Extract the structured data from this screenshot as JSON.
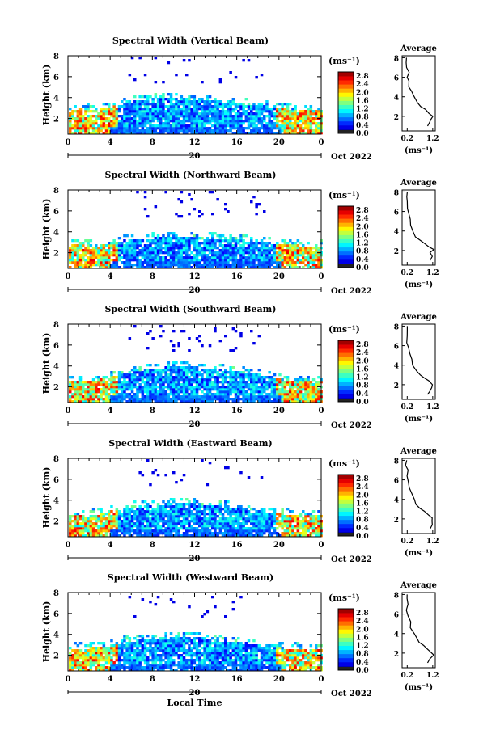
{
  "chart_data": [
    {
      "type": "heatmap",
      "title": "Spectral Width (Vertical Beam)",
      "xlabel": "",
      "ylabel": "Height (km)",
      "x_ticks": [
        "0",
        "4",
        "8",
        "12",
        "16",
        "20",
        "0"
      ],
      "y_ticks": [
        "2",
        "4",
        "6",
        "8"
      ],
      "xlim": [
        0,
        24
      ],
      "ylim": [
        0.5,
        8
      ],
      "date_day": "20",
      "date_month": "Oct 2022",
      "colorbar": {
        "unit": "(ms⁻¹)",
        "ticks": [
          "0.0",
          "0.4",
          "0.8",
          "1.2",
          "1.6",
          "2.0",
          "2.4",
          "2.8"
        ],
        "range": [
          0,
          3.0
        ]
      },
      "echo_top_km": [
        3.0,
        3.1,
        3.0,
        3.2,
        3.4,
        3.7,
        3.8,
        3.9,
        4.0,
        4.0,
        4.0,
        3.9,
        3.9,
        3.8,
        3.7,
        3.6,
        3.5,
        3.4,
        3.3,
        3.2,
        3.1,
        3.0,
        3.0,
        3.0
      ],
      "average": {
        "title": "Average",
        "xlabel": "(ms⁻¹)",
        "x_ticks": [
          "0.2",
          "1.2"
        ],
        "y_ticks": [
          "2",
          "4",
          "6",
          "8"
        ],
        "xlim": [
          0,
          1.3
        ],
        "profile": [
          [
            1.0,
            1.0
          ],
          [
            1.1,
            1.4
          ],
          [
            1.15,
            1.7
          ],
          [
            1.2,
            2.0
          ],
          [
            1.05,
            2.3
          ],
          [
            0.9,
            2.7
          ],
          [
            0.75,
            3.0
          ],
          [
            0.6,
            3.4
          ],
          [
            0.5,
            4.0
          ],
          [
            0.35,
            4.6
          ],
          [
            0.3,
            5.0
          ],
          [
            0.25,
            5.6
          ],
          [
            0.2,
            6.0
          ],
          [
            0.25,
            6.5
          ],
          [
            0.2,
            7.0
          ],
          [
            0.15,
            7.5
          ],
          [
            0.18,
            8.0
          ]
        ]
      }
    },
    {
      "type": "heatmap",
      "title": "Spectral Width (Northward Beam)",
      "xlabel": "",
      "ylabel": "Height (km)",
      "x_ticks": [
        "0",
        "4",
        "8",
        "12",
        "16",
        "20",
        "0"
      ],
      "y_ticks": [
        "2",
        "4",
        "6",
        "8"
      ],
      "xlim": [
        0,
        24
      ],
      "ylim": [
        0.5,
        8
      ],
      "date_day": "20",
      "date_month": "Oct 2022",
      "colorbar": {
        "unit": "(ms⁻¹)",
        "ticks": [
          "0.0",
          "0.4",
          "0.8",
          "1.2",
          "1.6",
          "2.0",
          "2.4",
          "2.8"
        ],
        "range": [
          0,
          3.0
        ]
      },
      "echo_top_km": [
        3.0,
        2.9,
        2.8,
        2.9,
        3.1,
        3.3,
        3.4,
        3.5,
        3.6,
        3.6,
        3.6,
        3.6,
        3.5,
        3.5,
        3.4,
        3.4,
        3.3,
        3.2,
        3.1,
        3.0,
        2.9,
        2.9,
        2.8,
        2.8
      ],
      "average": {
        "title": "Average",
        "xlabel": "(ms⁻¹)",
        "x_ticks": [
          "0.2",
          "1.2"
        ],
        "y_ticks": [
          "2",
          "4",
          "6",
          "8"
        ],
        "xlim": [
          0,
          1.3
        ],
        "profile": [
          [
            1.1,
            1.0
          ],
          [
            1.2,
            1.4
          ],
          [
            1.1,
            1.8
          ],
          [
            1.25,
            2.1
          ],
          [
            1.0,
            2.4
          ],
          [
            0.85,
            2.8
          ],
          [
            0.7,
            3.0
          ],
          [
            0.55,
            3.4
          ],
          [
            0.45,
            4.0
          ],
          [
            0.35,
            4.6
          ],
          [
            0.3,
            5.2
          ],
          [
            0.25,
            5.8
          ],
          [
            0.22,
            6.3
          ],
          [
            0.2,
            7.0
          ],
          [
            0.18,
            7.5
          ],
          [
            0.2,
            8.0
          ]
        ]
      }
    },
    {
      "type": "heatmap",
      "title": "Spectral Width (Southward Beam)",
      "xlabel": "",
      "ylabel": "Height (km)",
      "x_ticks": [
        "0",
        "4",
        "8",
        "12",
        "16",
        "20",
        "0"
      ],
      "y_ticks": [
        "2",
        "4",
        "6",
        "8"
      ],
      "xlim": [
        0,
        24
      ],
      "ylim": [
        0.5,
        8
      ],
      "date_day": "20",
      "date_month": "Oct 2022",
      "colorbar": {
        "unit": "(ms⁻¹)",
        "ticks": [
          "0.0",
          "0.4",
          "0.8",
          "1.2",
          "1.6",
          "2.0",
          "2.4",
          "2.8"
        ],
        "range": [
          0,
          3.0
        ]
      },
      "echo_top_km": [
        2.6,
        2.6,
        2.7,
        2.9,
        3.1,
        3.4,
        3.6,
        3.8,
        3.9,
        4.0,
        4.0,
        4.0,
        3.9,
        3.8,
        3.8,
        3.7,
        3.5,
        3.3,
        3.1,
        2.9,
        2.8,
        2.7,
        2.6,
        2.6
      ],
      "average": {
        "title": "Average",
        "xlabel": "(ms⁻¹)",
        "x_ticks": [
          "0.2",
          "1.2"
        ],
        "y_ticks": [
          "2",
          "4",
          "6",
          "8"
        ],
        "xlim": [
          0,
          1.3
        ],
        "profile": [
          [
            1.0,
            1.0
          ],
          [
            1.1,
            1.3
          ],
          [
            1.15,
            1.7
          ],
          [
            1.2,
            2.0
          ],
          [
            1.05,
            2.4
          ],
          [
            0.9,
            2.7
          ],
          [
            0.7,
            3.0
          ],
          [
            0.55,
            3.4
          ],
          [
            0.45,
            4.0
          ],
          [
            0.35,
            4.6
          ],
          [
            0.3,
            5.2
          ],
          [
            0.25,
            5.8
          ],
          [
            0.2,
            6.3
          ],
          [
            0.22,
            7.0
          ],
          [
            0.17,
            7.6
          ],
          [
            0.2,
            8.0
          ]
        ]
      }
    },
    {
      "type": "heatmap",
      "title": "Spectral Width (Eastward Beam)",
      "xlabel": "",
      "ylabel": "Height (km)",
      "x_ticks": [
        "0",
        "4",
        "8",
        "12",
        "16",
        "20",
        "0"
      ],
      "y_ticks": [
        "2",
        "4",
        "6",
        "8"
      ],
      "xlim": [
        0,
        24
      ],
      "ylim": [
        0.5,
        8
      ],
      "date_day": "20",
      "date_month": "Oct 2022",
      "colorbar": {
        "unit": "(ms⁻¹)",
        "ticks": [
          "0.0",
          "0.4",
          "0.8",
          "1.2",
          "1.6",
          "2.0",
          "2.4",
          "2.8"
        ],
        "range": [
          0,
          3.0
        ]
      },
      "echo_top_km": [
        2.7,
        2.7,
        2.8,
        2.9,
        3.1,
        3.3,
        3.5,
        3.6,
        3.7,
        3.8,
        3.8,
        3.8,
        3.7,
        3.6,
        3.6,
        3.5,
        3.4,
        3.2,
        3.0,
        2.9,
        2.8,
        2.7,
        2.7,
        2.7
      ],
      "average": {
        "title": "Average",
        "xlabel": "(ms⁻¹)",
        "x_ticks": [
          "0.2",
          "1.2"
        ],
        "y_ticks": [
          "2",
          "4",
          "6",
          "8"
        ],
        "xlim": [
          0,
          1.3
        ],
        "profile": [
          [
            1.1,
            1.0
          ],
          [
            1.2,
            1.4
          ],
          [
            1.15,
            1.8
          ],
          [
            1.2,
            2.1
          ],
          [
            1.0,
            2.4
          ],
          [
            0.85,
            2.8
          ],
          [
            0.7,
            3.1
          ],
          [
            0.55,
            3.5
          ],
          [
            0.45,
            4.0
          ],
          [
            0.38,
            4.6
          ],
          [
            0.3,
            5.2
          ],
          [
            0.25,
            5.8
          ],
          [
            0.22,
            6.4
          ],
          [
            0.2,
            7.0
          ],
          [
            0.15,
            7.5
          ],
          [
            0.18,
            8.0
          ]
        ]
      }
    },
    {
      "type": "heatmap",
      "title": "Spectral Width (Westward Beam)",
      "xlabel": "Local Time",
      "ylabel": "Height (km)",
      "x_ticks": [
        "0",
        "4",
        "8",
        "12",
        "16",
        "20",
        "0"
      ],
      "y_ticks": [
        "2",
        "4",
        "6",
        "8"
      ],
      "xlim": [
        0,
        24
      ],
      "ylim": [
        0.5,
        8
      ],
      "date_day": "20",
      "date_month": "Oct 2022",
      "colorbar": {
        "unit": "(ms⁻¹)",
        "ticks": [
          "0.0",
          "0.4",
          "0.8",
          "1.2",
          "1.6",
          "2.0",
          "2.4",
          "2.8"
        ],
        "range": [
          0,
          3.0
        ]
      },
      "echo_top_km": [
        2.8,
        2.8,
        2.9,
        3.0,
        3.2,
        3.5,
        3.6,
        3.7,
        3.8,
        3.9,
        3.9,
        3.8,
        3.8,
        3.7,
        3.6,
        3.5,
        3.4,
        3.2,
        3.0,
        2.9,
        2.8,
        2.8,
        2.7,
        2.7
      ],
      "average": {
        "title": "Average",
        "xlabel": "(ms⁻¹)",
        "x_ticks": [
          "0.2",
          "1.2"
        ],
        "y_ticks": [
          "2",
          "4",
          "6",
          "8"
        ],
        "xlim": [
          0,
          1.3
        ],
        "profile": [
          [
            1.0,
            1.0
          ],
          [
            1.1,
            1.4
          ],
          [
            1.2,
            1.8
          ],
          [
            1.15,
            2.1
          ],
          [
            1.0,
            2.4
          ],
          [
            0.85,
            2.8
          ],
          [
            0.7,
            3.1
          ],
          [
            0.55,
            3.5
          ],
          [
            0.45,
            4.0
          ],
          [
            0.35,
            4.6
          ],
          [
            0.3,
            5.2
          ],
          [
            0.25,
            5.8
          ],
          [
            0.2,
            6.4
          ],
          [
            0.22,
            7.0
          ],
          [
            0.18,
            7.6
          ],
          [
            0.2,
            8.0
          ]
        ]
      }
    }
  ],
  "colors": {
    "background": "#ffffff",
    "axis": "#000000"
  }
}
